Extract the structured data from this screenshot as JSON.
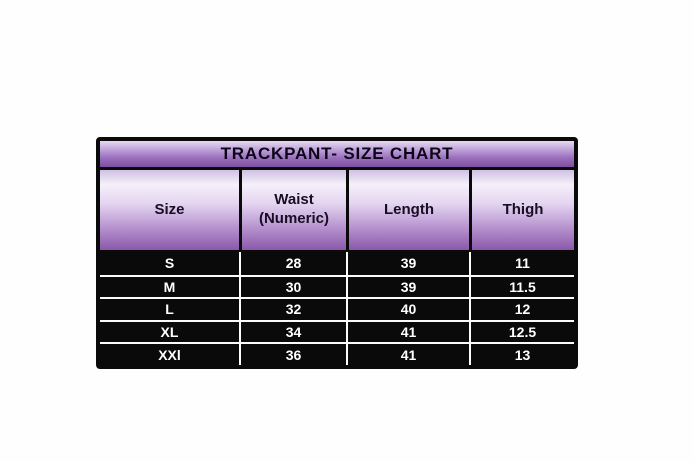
{
  "chart_data": {
    "type": "table",
    "title": "TRACKPANT- SIZE CHART",
    "columns": [
      "Size",
      "Waist (Numeric)",
      "Length",
      "Thigh"
    ],
    "rows": [
      [
        "S",
        28,
        39,
        11
      ],
      [
        "M",
        30,
        39,
        11.5
      ],
      [
        "L",
        32,
        40,
        12
      ],
      [
        "XL",
        34,
        41,
        12.5
      ],
      [
        "XXl",
        36,
        41,
        13
      ]
    ]
  },
  "colors": {
    "header_gradient_top": "#f5f0fa",
    "header_gradient_bottom": "#8a58ab",
    "title_gradient_top": "#e6daf1",
    "title_gradient_bottom": "#7c4ea0",
    "row_background": "#0a0a0a",
    "row_text": "#ffffff",
    "outer_border": "#0a0a0a",
    "row_separator": "#fbfbfb"
  }
}
